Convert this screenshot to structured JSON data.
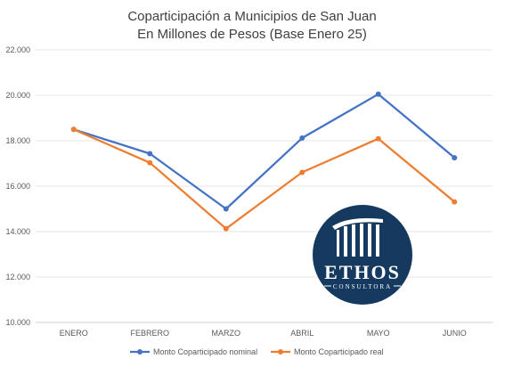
{
  "chart_data": {
    "type": "line",
    "title": "Coparticipación a Municipios de San Juan",
    "subtitle": "En Millones de Pesos (Base Enero 25)",
    "categories": [
      "ENERO",
      "FEBRERO",
      "MARZO",
      "ABRIL",
      "MAYO",
      "JUNIO"
    ],
    "series": [
      {
        "name": "Monto Coparticipado nominal",
        "color": "#4472C4",
        "values": [
          18500,
          17430,
          15000,
          18120,
          20050,
          17250
        ]
      },
      {
        "name": "Monto Coparticipado real",
        "color": "#ED7D31",
        "values": [
          18500,
          17030,
          14130,
          16610,
          18090,
          15310
        ]
      }
    ],
    "ylim": [
      10000,
      22000
    ],
    "yticks": [
      10000,
      12000,
      14000,
      16000,
      18000,
      20000,
      22000
    ],
    "ytick_labels": [
      "10.000",
      "12.000",
      "14.000",
      "16.000",
      "18.000",
      "20.000",
      "22.000"
    ],
    "grid": true,
    "legend_position": "bottom"
  },
  "logo": {
    "name": "ETHOS",
    "tagline": "CONSULTORA",
    "color": "#163A5F"
  }
}
